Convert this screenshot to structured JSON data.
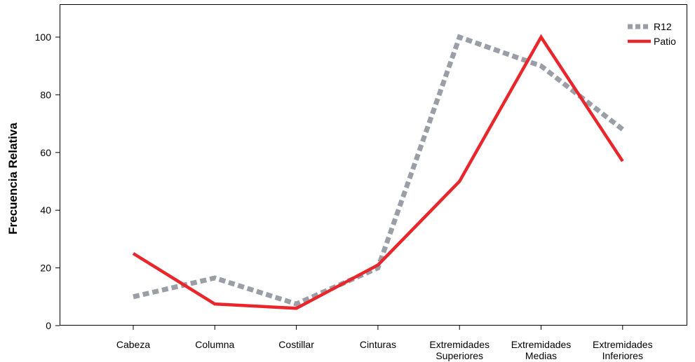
{
  "chart_data": {
    "type": "line",
    "ylabel": "Frecuencia Relativa",
    "xlabel": "",
    "ylim": [
      0,
      110
    ],
    "yticks": [
      0,
      20,
      40,
      60,
      80,
      100
    ],
    "categories": [
      [
        "Cabeza"
      ],
      [
        "Columna"
      ],
      [
        "Costillar"
      ],
      [
        "Cinturas"
      ],
      [
        "Extremidades",
        "Superiores"
      ],
      [
        "Extremidades",
        "Medias"
      ],
      [
        "Extremidades",
        "Inferiores"
      ]
    ],
    "series": [
      {
        "name": "R12",
        "color": "#9a9ea6",
        "style": "dashed",
        "values": [
          10,
          16.5,
          7.5,
          20,
          100,
          90,
          68
        ]
      },
      {
        "name": "Patio",
        "color": "#e8262c",
        "style": "solid",
        "values": [
          25,
          7.5,
          6,
          21,
          50,
          100,
          57
        ]
      }
    ],
    "legend_position": "top-right",
    "grid": false
  }
}
